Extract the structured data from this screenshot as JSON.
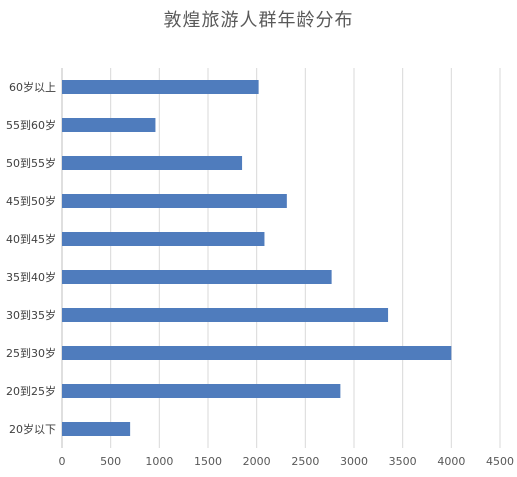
{
  "chart_data": {
    "type": "bar",
    "orientation": "horizontal",
    "title": "敦煌旅游人群年龄分布",
    "categories": [
      "60岁以上",
      "55到60岁",
      "50到55岁",
      "45到50岁",
      "40到45岁",
      "35到40岁",
      "30到35岁",
      "25到30岁",
      "20到25岁",
      "20岁以下"
    ],
    "values": [
      2020,
      960,
      1850,
      2310,
      2080,
      2770,
      3350,
      4000,
      2860,
      700
    ],
    "xlim": [
      0,
      4500
    ],
    "x_ticks": [
      "0",
      "500",
      "1000",
      "1500",
      "2000",
      "2500",
      "3000",
      "3500",
      "4000",
      "4500"
    ],
    "grid": true,
    "bar_color": "#4F7CBD",
    "grid_color": "#D9D9D9"
  }
}
